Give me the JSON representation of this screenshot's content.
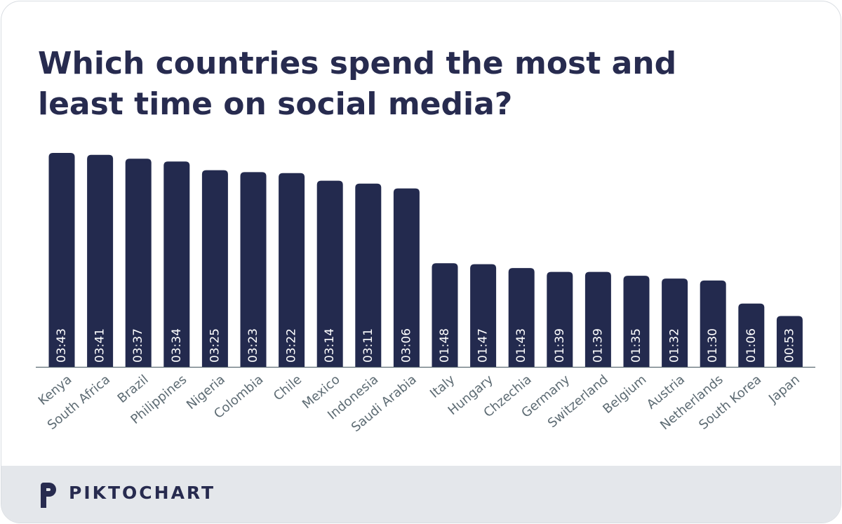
{
  "chart_data": {
    "type": "bar",
    "title": "Which countries spend the most and least time on social media?",
    "categories": [
      "Kenya",
      "South Africa",
      "Brazil",
      "Philippines",
      "Nigeria",
      "Colombia",
      "Chile",
      "Mexico",
      "Indonesia",
      "Saudi Arabia",
      "Italy",
      "Hungary",
      "Chzechia",
      "Germany",
      "Switzerland",
      "Belgium",
      "Austria",
      "Netherlands",
      "South Korea",
      "Japan"
    ],
    "values": [
      223,
      221,
      217,
      214,
      205,
      203,
      202,
      194,
      191,
      186,
      108,
      107,
      103,
      99,
      99,
      95,
      92,
      90,
      66,
      53
    ],
    "value_labels": [
      "03:43",
      "03:41",
      "03:37",
      "03:34",
      "03:25",
      "03:23",
      "03:22",
      "03:14",
      "03:11",
      "03:06",
      "01:48",
      "01:47",
      "01:43",
      "01:39",
      "01:39",
      "01:35",
      "01:32",
      "01:30",
      "01:06",
      "00:53"
    ],
    "color": "#232a4e"
  },
  "footer": {
    "brand": "PIKTOCHART"
  }
}
